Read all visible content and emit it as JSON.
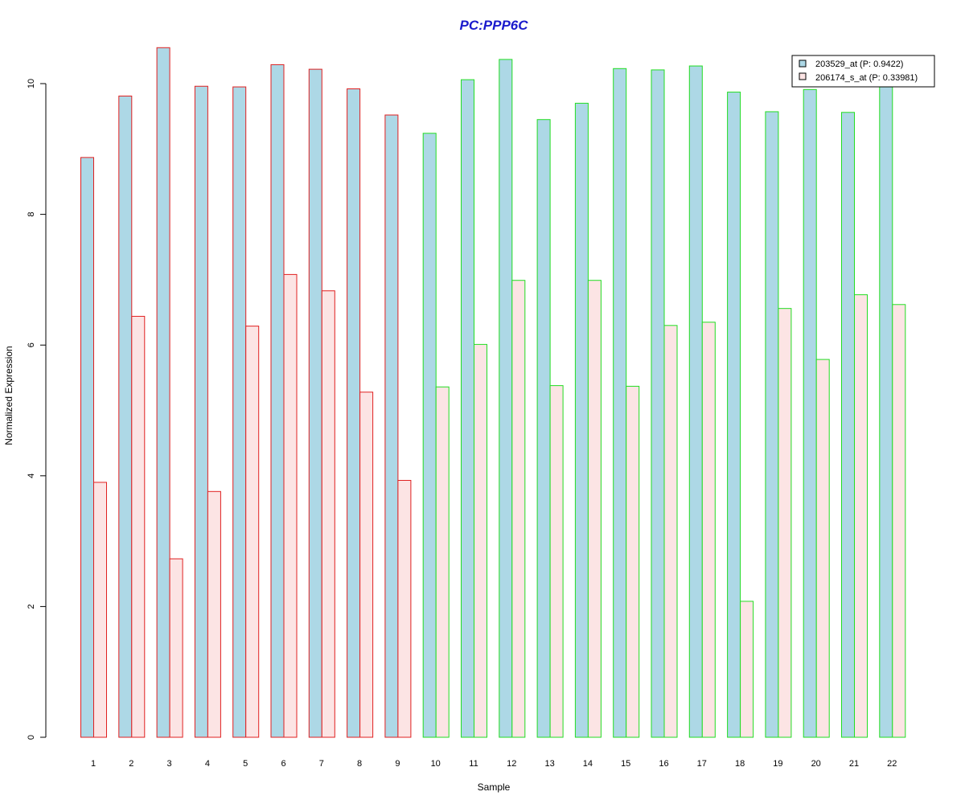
{
  "chart_data": {
    "type": "bar",
    "title": "PC:PPP6C",
    "xlabel": "Sample",
    "ylabel": "Normalized Expression",
    "categories": [
      "1",
      "2",
      "3",
      "4",
      "5",
      "6",
      "7",
      "8",
      "9",
      "10",
      "11",
      "12",
      "13",
      "14",
      "15",
      "16",
      "17",
      "18",
      "19",
      "20",
      "21",
      "22"
    ],
    "series": [
      {
        "name": "203529_at (P: 0.9422)",
        "fill": "#add8e6",
        "values": [
          8.87,
          9.81,
          10.55,
          9.96,
          9.95,
          10.29,
          10.22,
          9.92,
          9.52,
          9.24,
          10.06,
          10.37,
          9.45,
          9.7,
          10.23,
          10.21,
          10.27,
          9.87,
          9.57,
          9.91,
          9.56,
          9.95
        ]
      },
      {
        "name": "206174_s_at (P: 0.33981)",
        "fill": "#fce4e4",
        "values": [
          3.9,
          6.44,
          2.73,
          3.76,
          6.29,
          7.08,
          6.83,
          5.28,
          3.93,
          5.36,
          6.01,
          6.99,
          5.38,
          6.99,
          5.37,
          6.3,
          6.35,
          2.08,
          6.56,
          5.78,
          6.77,
          6.62
        ]
      }
    ],
    "group_border_colors": {
      "group_a": "#e02020",
      "group_b": "#22dd22"
    },
    "group_a_count": 9,
    "title_color": "#1a1acc",
    "yticks": [
      0,
      2,
      4,
      6,
      8,
      10
    ],
    "ylim": [
      0,
      10.6
    ],
    "legend_position": "top-right",
    "grid": false
  }
}
